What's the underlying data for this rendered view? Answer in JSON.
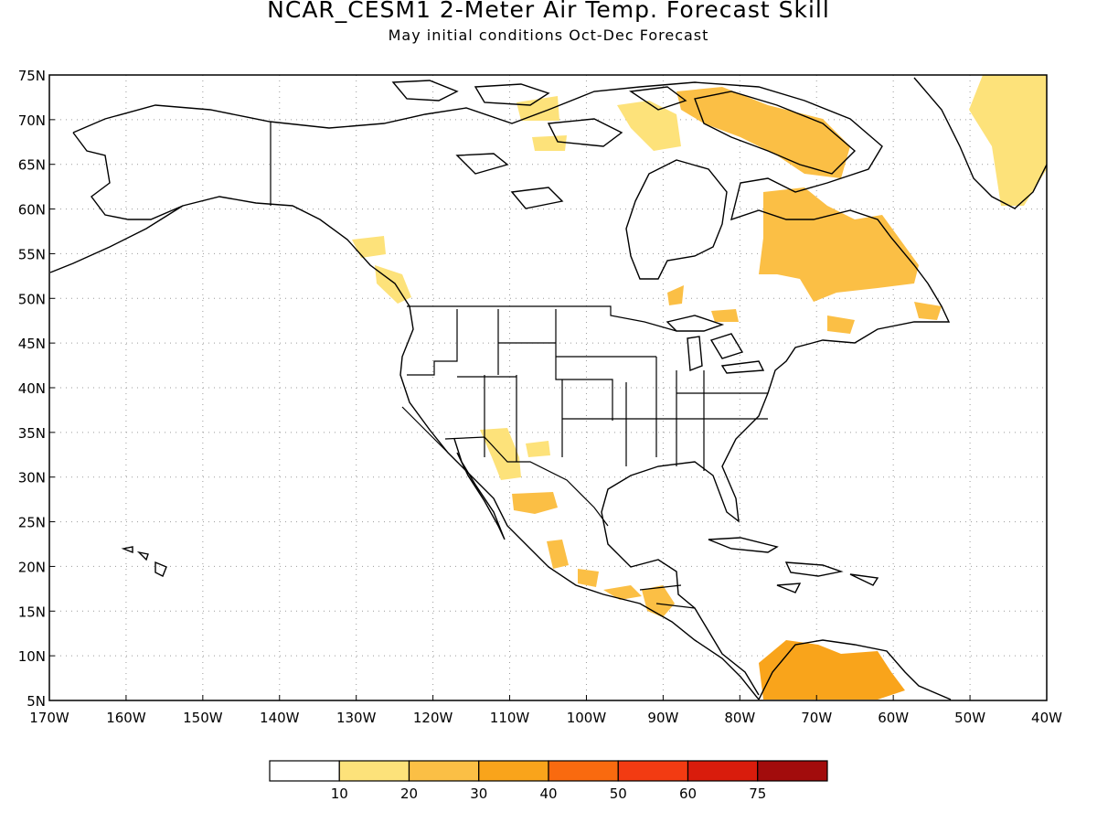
{
  "header": {
    "title": "NCAR_CESM1 2-Meter Air Temp. Forecast Skill",
    "subtitle": "May initial conditions  Oct-Dec Forecast"
  },
  "map": {
    "projection": "cylindrical",
    "lon_range": [
      -170,
      -40
    ],
    "lat_range": [
      5,
      75
    ],
    "gridlines": "dotted",
    "lat_labels": [
      "75N",
      "70N",
      "65N",
      "60N",
      "55N",
      "50N",
      "45N",
      "40N",
      "35N",
      "30N",
      "25N",
      "20N",
      "15N",
      "10N",
      "5N"
    ],
    "lon_labels": [
      "170W",
      "160W",
      "150W",
      "140W",
      "130W",
      "120W",
      "110W",
      "100W",
      "90W",
      "80W",
      "70W",
      "60W",
      "50W",
      "40W"
    ]
  },
  "legend": {
    "colors": [
      "#ffffff",
      "#fde27a",
      "#fbbf45",
      "#f9a41b",
      "#f96a0f",
      "#f23b12",
      "#d91c0c",
      "#a20c0c"
    ],
    "labels": [
      "10",
      "20",
      "30",
      "40",
      "50",
      "60",
      "75"
    ]
  },
  "skill_regions": [
    {
      "name": "greenland",
      "level": 1
    },
    {
      "name": "arctic-archipelago",
      "level": 1
    },
    {
      "name": "baffin",
      "level": 2
    },
    {
      "name": "quebec-labrador",
      "level": 2
    },
    {
      "name": "british-columbia",
      "level": 1
    },
    {
      "name": "southwest-us",
      "level": 1
    },
    {
      "name": "mexico",
      "level": 2
    },
    {
      "name": "central-america",
      "level": 2
    },
    {
      "name": "northern-south-america",
      "level": 3
    }
  ],
  "chart_data": {
    "type": "heatmap",
    "title": "NCAR_CESM1 2-Meter Air Temp. Forecast Skill",
    "subtitle": "May initial conditions  Oct-Dec Forecast",
    "x_range": [
      -170,
      -40
    ],
    "y_range": [
      5,
      75
    ],
    "color_scale_breaks": [
      10,
      20,
      30,
      40,
      50,
      60,
      75
    ]
  }
}
